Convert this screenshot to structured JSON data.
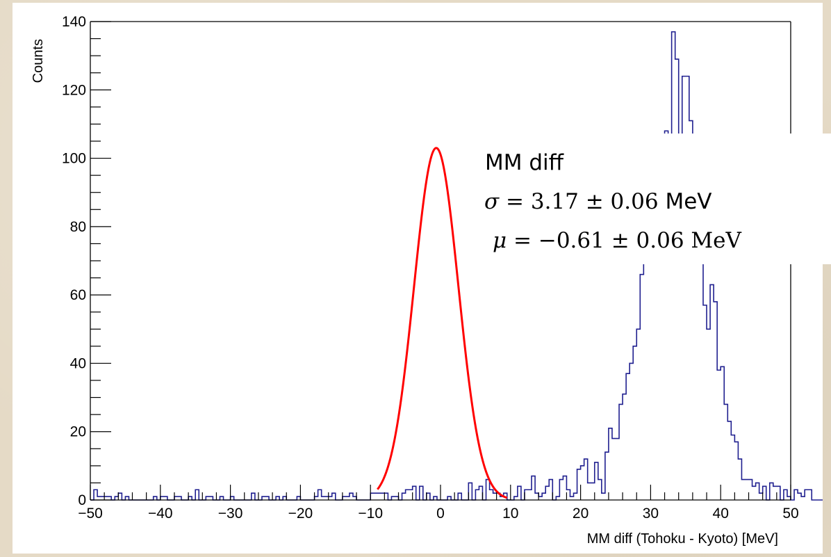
{
  "chart_data": {
    "type": "histogram",
    "xlabel": "MM diff (Tohoku - Kyoto) [MeV]",
    "ylabel": "Counts",
    "xlim": [
      -50,
      50
    ],
    "ylim": [
      0,
      140
    ],
    "x_ticks": [
      -50,
      -40,
      -30,
      -20,
      -10,
      0,
      10,
      20,
      30,
      40,
      50
    ],
    "y_ticks": [
      0,
      20,
      40,
      60,
      80,
      100,
      120,
      140
    ],
    "x_tick_labels": [
      "−50",
      "−40",
      "−30",
      "−20",
      "−10",
      "0",
      "10",
      "20",
      "30",
      "40",
      "50"
    ],
    "y_tick_labels": [
      "0",
      "20",
      "40",
      "60",
      "80",
      "100",
      "120",
      "140"
    ],
    "bin_width": 0.5,
    "histogram": {
      "color": "#1f1f8f",
      "bin_edges_start": -50,
      "counts": [
        0,
        3,
        1,
        1,
        1,
        1,
        0,
        1,
        2,
        0,
        1,
        0,
        0,
        0,
        0,
        0,
        0,
        0,
        1,
        0,
        1,
        1,
        0,
        0,
        1,
        1,
        0,
        0,
        1,
        0,
        3,
        0,
        0,
        1,
        1,
        0,
        0,
        1,
        0,
        0,
        1,
        0,
        0,
        0,
        0,
        0,
        2,
        0,
        0,
        1,
        1,
        0,
        0,
        1,
        0,
        1,
        0,
        0,
        0,
        1,
        0,
        0,
        0,
        0,
        1,
        3,
        1,
        1,
        1,
        2,
        0,
        0,
        1,
        1,
        2,
        1,
        0,
        0,
        0,
        0,
        2,
        2,
        2,
        2,
        2,
        0,
        1,
        1,
        0,
        2,
        3,
        3,
        4,
        0,
        4,
        0,
        2,
        0,
        1,
        0,
        0,
        0,
        1,
        0,
        0,
        2,
        0,
        0,
        5,
        0,
        3,
        4,
        0,
        6,
        3,
        2,
        2,
        1,
        2,
        0,
        0,
        1,
        4,
        0,
        3,
        3,
        7,
        2,
        1,
        2,
        4,
        6,
        0,
        1,
        6,
        7,
        3,
        1,
        2,
        9,
        10,
        12,
        5,
        5,
        11,
        6,
        2,
        14,
        21,
        18,
        18,
        28,
        31,
        37,
        40,
        45,
        50,
        66,
        72,
        82,
        80,
        99,
        105,
        96,
        108,
        107,
        137,
        129,
        94,
        124,
        124,
        111,
        98,
        84,
        77,
        57,
        50,
        63,
        58,
        38,
        39,
        28,
        23,
        19,
        17,
        12,
        6,
        6,
        6,
        4,
        5,
        2,
        4,
        0,
        5,
        4,
        4,
        0,
        3,
        1,
        0,
        3,
        2,
        1,
        3,
        3,
        0,
        0,
        0,
        0,
        1,
        1,
        0,
        1,
        1,
        0,
        0,
        0,
        0,
        1,
        0,
        0,
        1,
        1,
        1,
        1,
        0,
        0,
        0,
        0,
        0,
        0,
        0,
        1,
        0,
        0,
        0,
        0,
        0,
        0,
        1,
        0,
        0,
        0,
        0,
        0,
        0,
        1,
        0,
        0,
        0,
        0,
        0,
        0,
        0,
        0,
        0,
        1,
        0,
        0,
        1,
        0,
        0,
        0,
        0,
        0,
        1,
        2,
        0,
        1,
        0,
        0,
        1,
        0,
        0,
        1,
        0,
        0,
        0,
        1,
        0,
        0,
        0,
        0,
        0,
        0,
        1,
        1,
        1,
        1,
        0,
        0,
        0,
        0,
        0,
        0,
        0,
        0,
        0,
        0
      ]
    },
    "fit": {
      "color": "#ff0000",
      "function": "gaussian",
      "amplitude": 103,
      "mean": -0.61,
      "sigma": 3.17,
      "range": [
        -9,
        9.5
      ]
    },
    "annotation": {
      "title": "MM diff",
      "sigma_symbol": "σ",
      "sigma_text": " = 3.17 ± 0.06 ",
      "sigma_unit": "MeV",
      "mu_symbol": "μ",
      "mu_text": " = −0.61 ± 0.06 MeV"
    }
  }
}
